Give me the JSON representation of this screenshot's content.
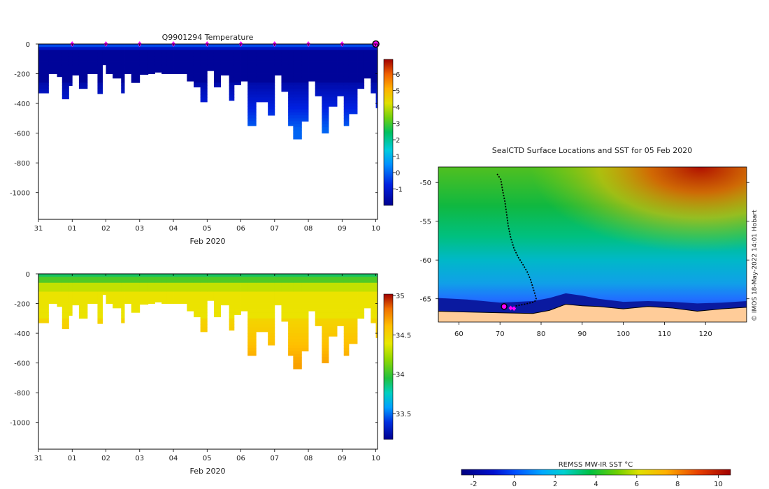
{
  "chart_data": [
    {
      "id": "temperature-section",
      "type": "heatmap",
      "title": "Q9901294  Temperature",
      "xlabel": "Feb 2020",
      "ylabel": "",
      "xlim": [
        -1,
        9.05
      ],
      "ylim": [
        -1180,
        0
      ],
      "x_ticks": [
        -1,
        0,
        1,
        2,
        3,
        4,
        5,
        6,
        7,
        8,
        9
      ],
      "x_tick_labels": [
        "31",
        "01",
        "02",
        "03",
        "04",
        "05",
        "06",
        "07",
        "08",
        "09",
        "10"
      ],
      "y_ticks": [
        0,
        -200,
        -400,
        -600,
        -800,
        -1000
      ],
      "y_tick_labels": [
        "0",
        "-200",
        "-400",
        "-600",
        "-800",
        "-1000"
      ],
      "colorbar": {
        "range": [
          -2,
          6.9
        ],
        "ticks": [
          -1,
          0,
          1,
          2,
          3,
          4,
          5,
          6
        ],
        "tick_labels": [
          "-1",
          "0",
          "1",
          "2",
          "3",
          "4",
          "5",
          "6"
        ]
      },
      "surface_markers_days": [
        0,
        1,
        2,
        3,
        4,
        5,
        6,
        7,
        8
      ],
      "current_profile_day": 9.0,
      "profiles": {
        "days": [
          -1.0,
          -0.7,
          -0.45,
          -0.3,
          -0.1,
          0.0,
          0.2,
          0.45,
          0.75,
          0.9,
          1.0,
          1.2,
          1.45,
          1.55,
          1.75,
          2.0,
          2.25,
          2.45,
          2.65,
          2.8,
          3.0,
          3.2,
          3.4,
          3.6,
          3.8,
          4.0,
          4.2,
          4.4,
          4.65,
          4.8,
          5.0,
          5.2,
          5.45,
          5.6,
          5.8,
          6.0,
          6.2,
          6.4,
          6.55,
          6.8,
          7.0,
          7.2,
          7.4,
          7.6,
          7.85,
          8.05,
          8.2,
          8.45,
          8.65,
          8.85,
          9.0
        ],
        "max_depth_m": [
          330,
          200,
          220,
          370,
          280,
          210,
          300,
          200,
          335,
          140,
          200,
          230,
          330,
          200,
          260,
          205,
          200,
          190,
          200,
          200,
          200,
          200,
          250,
          290,
          390,
          180,
          290,
          210,
          380,
          275,
          250,
          550,
          390,
          390,
          480,
          210,
          320,
          550,
          640,
          520,
          250,
          350,
          600,
          420,
          350,
          550,
          470,
          300,
          230,
          330,
          430
        ]
      }
    },
    {
      "id": "salinity-section",
      "type": "heatmap",
      "title": "",
      "xlabel": "Feb 2020",
      "ylabel": "",
      "xlim": [
        -1,
        9.05
      ],
      "ylim": [
        -1180,
        0
      ],
      "x_ticks": [
        -1,
        0,
        1,
        2,
        3,
        4,
        5,
        6,
        7,
        8,
        9
      ],
      "x_tick_labels": [
        "31",
        "01",
        "02",
        "03",
        "04",
        "05",
        "06",
        "07",
        "08",
        "09",
        "10"
      ],
      "y_ticks": [
        0,
        -200,
        -400,
        -600,
        -800,
        -1000
      ],
      "y_tick_labels": [
        "0",
        "-200",
        "-400",
        "-600",
        "-800",
        "-1000"
      ],
      "colorbar": {
        "range": [
          33.17,
          35.02
        ],
        "ticks": [
          33.5,
          34,
          34.5,
          35
        ],
        "tick_labels": [
          "33.5",
          "34",
          "34.5",
          "35"
        ]
      }
    },
    {
      "id": "sst-map",
      "type": "heatmap",
      "title": "SealCTD Surface Locations and SST for 05 Feb 2020",
      "xlabel": "",
      "ylabel": "",
      "xlim": [
        55,
        130
      ],
      "ylim": [
        -68,
        -48
      ],
      "x_ticks": [
        60,
        70,
        80,
        90,
        100,
        110,
        120
      ],
      "x_tick_labels": [
        "60",
        "70",
        "80",
        "90",
        "100",
        "110",
        "120"
      ],
      "y_ticks": [
        -50,
        -55,
        -60,
        -65
      ],
      "y_tick_labels": [
        "-50",
        "-55",
        "-60",
        "-65"
      ],
      "track_lon": [
        69.3,
        70.2,
        70.6,
        71.2,
        71.6,
        72.0,
        72.6,
        73.4,
        74.4,
        75.5,
        76.6,
        77.4,
        78.0,
        78.5,
        78.8,
        78.4,
        76.0,
        74.0,
        73.0
      ],
      "track_lat": [
        -48.9,
        -49.6,
        -50.9,
        -52.5,
        -54.0,
        -55.6,
        -57.1,
        -58.5,
        -59.6,
        -60.5,
        -61.5,
        -62.5,
        -63.5,
        -64.4,
        -65.0,
        -65.4,
        -65.7,
        -65.9,
        -66.2
      ],
      "current_position": {
        "lon": 71.0,
        "lat": -66.0
      },
      "latest_markers": [
        {
          "lon": 72.6,
          "lat": -66.2
        },
        {
          "lon": 73.4,
          "lat": -66.25
        }
      ],
      "ice_edge": {
        "lon": [
          55,
          62,
          70,
          78,
          82,
          86,
          90,
          94,
          100,
          106,
          112,
          118,
          124,
          130
        ],
        "lat": [
          -64.9,
          -65.1,
          -65.5,
          -65.3,
          -64.9,
          -64.3,
          -64.6,
          -65.0,
          -65.4,
          -65.3,
          -65.4,
          -65.6,
          -65.5,
          -65.3
        ]
      },
      "land_edge": {
        "lon": [
          55,
          62,
          70,
          78,
          82,
          86,
          90,
          94,
          100,
          106,
          112,
          118,
          124,
          130
        ],
        "lat": [
          -66.6,
          -66.7,
          -66.8,
          -66.9,
          -66.5,
          -65.7,
          -65.9,
          -66.0,
          -66.3,
          -66.0,
          -66.2,
          -66.6,
          -66.3,
          -66.1
        ]
      }
    },
    {
      "id": "sst-colorbar",
      "type": "heatmap",
      "title": "REMSS MW-IR SST °C",
      "range": [
        -2.6,
        10.6
      ],
      "ticks": [
        -2,
        0,
        2,
        4,
        6,
        8,
        10
      ],
      "tick_labels": [
        "-2",
        "0",
        "2",
        "4",
        "6",
        "8",
        "10"
      ]
    }
  ],
  "credit": "© IMOS 18-May-2022 14:01 Hobart",
  "colors": {
    "marker_magenta": "#ff00ff",
    "land": "#ffcc99",
    "track": "#000000"
  }
}
